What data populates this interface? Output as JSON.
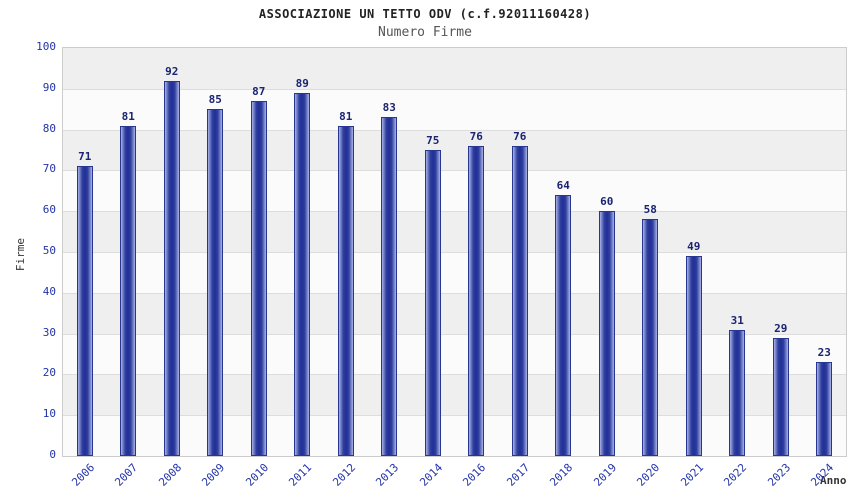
{
  "chart_data": {
    "type": "bar",
    "title": "ASSOCIAZIONE UN TETTO ODV (c.f.92011160428)",
    "subtitle": "Numero Firme",
    "xlabel": "Anno",
    "ylabel": "Firme",
    "ylim": [
      0,
      100
    ],
    "y_tick_step": 10,
    "grid": true,
    "categories": [
      "2006",
      "2007",
      "2008",
      "2009",
      "2010",
      "2011",
      "2012",
      "2013",
      "2014",
      "2016",
      "2017",
      "2018",
      "2019",
      "2020",
      "2021",
      "2022",
      "2023",
      "2024"
    ],
    "values": [
      71,
      81,
      92,
      85,
      87,
      89,
      81,
      83,
      75,
      76,
      76,
      64,
      60,
      58,
      49,
      31,
      29,
      23
    ],
    "colors": {
      "bar_dark": "#1f2f96",
      "bar_mid": "#31409f",
      "bar_light": "#a7b2e6",
      "tick_label": "#2233aa",
      "value_label": "#1a2470",
      "band_gray": "#efefef",
      "band_white": "#fbfbfb",
      "gridline": "#dddddd"
    }
  }
}
